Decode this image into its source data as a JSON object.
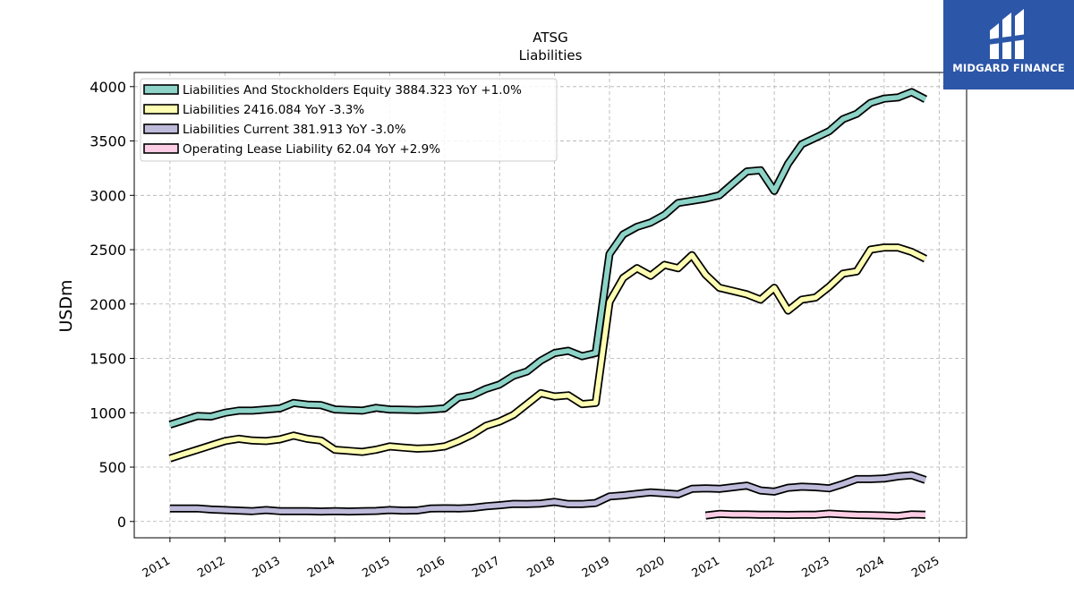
{
  "chart_data": {
    "type": "line",
    "title": "ATSG",
    "subtitle": "Liabilities",
    "ylabel": "USDm",
    "xlabel": "",
    "ylim": [
      -150,
      4130
    ],
    "xlim": [
      2010.35,
      2025.5
    ],
    "yticks": [
      0,
      500,
      1000,
      1500,
      2000,
      2500,
      3000,
      3500,
      4000
    ],
    "xticks": [
      "2011",
      "2012",
      "2013",
      "2014",
      "2015",
      "2016",
      "2017",
      "2018",
      "2019",
      "2020",
      "2021",
      "2022",
      "2023",
      "2024",
      "2025"
    ],
    "grid": true,
    "legend_position": "top-left",
    "series": [
      {
        "name": "Liabilities And Stockholders Equity",
        "legend_label": "Liabilities And Stockholders Equity  3884.323 YoY +1.0%",
        "color": "#8dd3c7",
        "x": [
          2011.0,
          2011.25,
          2011.5,
          2011.75,
          2012.0,
          2012.25,
          2012.5,
          2012.75,
          2013.0,
          2013.25,
          2013.5,
          2013.75,
          2014.0,
          2014.25,
          2014.5,
          2014.75,
          2015.0,
          2015.25,
          2015.5,
          2015.75,
          2016.0,
          2016.25,
          2016.5,
          2016.75,
          2017.0,
          2017.25,
          2017.5,
          2017.75,
          2018.0,
          2018.25,
          2018.5,
          2018.75,
          2019.0,
          2019.25,
          2019.5,
          2019.75,
          2020.0,
          2020.25,
          2020.5,
          2020.75,
          2021.0,
          2021.25,
          2021.5,
          2021.75,
          2022.0,
          2022.25,
          2022.5,
          2022.75,
          2023.0,
          2023.25,
          2023.5,
          2023.75,
          2024.0,
          2024.25,
          2024.5,
          2024.75
        ],
        "values": [
          890,
          930,
          970,
          965,
          1000,
          1020,
          1020,
          1030,
          1040,
          1090,
          1075,
          1070,
          1030,
          1025,
          1020,
          1045,
          1030,
          1028,
          1025,
          1030,
          1040,
          1140,
          1160,
          1220,
          1260,
          1340,
          1380,
          1480,
          1550,
          1570,
          1520,
          1550,
          2460,
          2640,
          2710,
          2750,
          2820,
          2930,
          2950,
          2970,
          3000,
          3110,
          3220,
          3230,
          3040,
          3290,
          3470,
          3530,
          3590,
          3700,
          3750,
          3850,
          3890,
          3900,
          3950,
          3884
        ]
      },
      {
        "name": "Liabilities",
        "legend_label": "Liabilities  2416.084 YoY -3.3%",
        "color": "#ffffb3",
        "x": [
          2011.0,
          2011.25,
          2011.5,
          2011.75,
          2012.0,
          2012.25,
          2012.5,
          2012.75,
          2013.0,
          2013.25,
          2013.5,
          2013.75,
          2014.0,
          2014.25,
          2014.5,
          2014.75,
          2015.0,
          2015.25,
          2015.5,
          2015.75,
          2016.0,
          2016.25,
          2016.5,
          2016.75,
          2017.0,
          2017.25,
          2017.5,
          2017.75,
          2018.0,
          2018.25,
          2018.5,
          2018.75,
          2019.0,
          2019.25,
          2019.5,
          2019.75,
          2020.0,
          2020.25,
          2020.5,
          2020.75,
          2021.0,
          2021.25,
          2021.5,
          2021.75,
          2022.0,
          2022.25,
          2022.5,
          2022.75,
          2023.0,
          2023.25,
          2023.5,
          2023.75,
          2024.0,
          2024.25,
          2024.5,
          2024.75
        ],
        "values": [
          580,
          620,
          660,
          700,
          740,
          760,
          745,
          740,
          755,
          790,
          760,
          745,
          660,
          650,
          640,
          660,
          690,
          680,
          670,
          675,
          690,
          740,
          800,
          880,
          920,
          980,
          1080,
          1180,
          1150,
          1160,
          1080,
          1090,
          2020,
          2240,
          2330,
          2260,
          2360,
          2330,
          2450,
          2270,
          2150,
          2120,
          2090,
          2040,
          2150,
          1940,
          2040,
          2060,
          2160,
          2280,
          2300,
          2500,
          2520,
          2520,
          2480,
          2416
        ]
      },
      {
        "name": "Liabilities Current",
        "legend_label": "Liabilities Current  381.913 YoY -3.0%",
        "color": "#bebada",
        "x": [
          2011.0,
          2011.25,
          2011.5,
          2011.75,
          2012.0,
          2012.25,
          2012.5,
          2012.75,
          2013.0,
          2013.25,
          2013.5,
          2013.75,
          2014.0,
          2014.25,
          2014.5,
          2014.75,
          2015.0,
          2015.25,
          2015.5,
          2015.75,
          2016.0,
          2016.25,
          2016.5,
          2016.75,
          2017.0,
          2017.25,
          2017.5,
          2017.75,
          2018.0,
          2018.25,
          2018.5,
          2018.75,
          2019.0,
          2019.25,
          2019.5,
          2019.75,
          2020.0,
          2020.25,
          2020.5,
          2020.75,
          2021.0,
          2021.25,
          2021.5,
          2021.75,
          2022.0,
          2022.25,
          2022.5,
          2022.75,
          2023.0,
          2023.25,
          2023.5,
          2023.75,
          2024.0,
          2024.25,
          2024.5,
          2024.75
        ],
        "values": [
          120,
          120,
          120,
          110,
          105,
          100,
          95,
          105,
          95,
          95,
          95,
          92,
          95,
          92,
          95,
          97,
          105,
          100,
          102,
          120,
          122,
          120,
          125,
          140,
          150,
          162,
          160,
          165,
          180,
          160,
          160,
          170,
          230,
          240,
          255,
          268,
          260,
          250,
          300,
          305,
          300,
          315,
          330,
          285,
          275,
          310,
          320,
          315,
          305,
          345,
          390,
          390,
          395,
          415,
          425,
          382
        ]
      },
      {
        "name": "Operating Lease Liability",
        "legend_label": "Operating Lease Liability  62.04 YoY +2.9%",
        "color": "#fccde5",
        "x": [
          2020.75,
          2021.0,
          2021.25,
          2021.5,
          2021.75,
          2022.0,
          2022.25,
          2022.5,
          2022.75,
          2023.0,
          2023.25,
          2023.5,
          2023.75,
          2024.0,
          2024.25,
          2024.5,
          2024.75
        ],
        "values": [
          55,
          70,
          65,
          65,
          62,
          62,
          60,
          62,
          62,
          72,
          65,
          60,
          58,
          55,
          50,
          65,
          62
        ]
      }
    ]
  },
  "branding": {
    "logo_text": "MIDGARD FINANCE",
    "logo_color": "#2c56a8",
    "logo_icon": "midgard-logo-icon"
  }
}
